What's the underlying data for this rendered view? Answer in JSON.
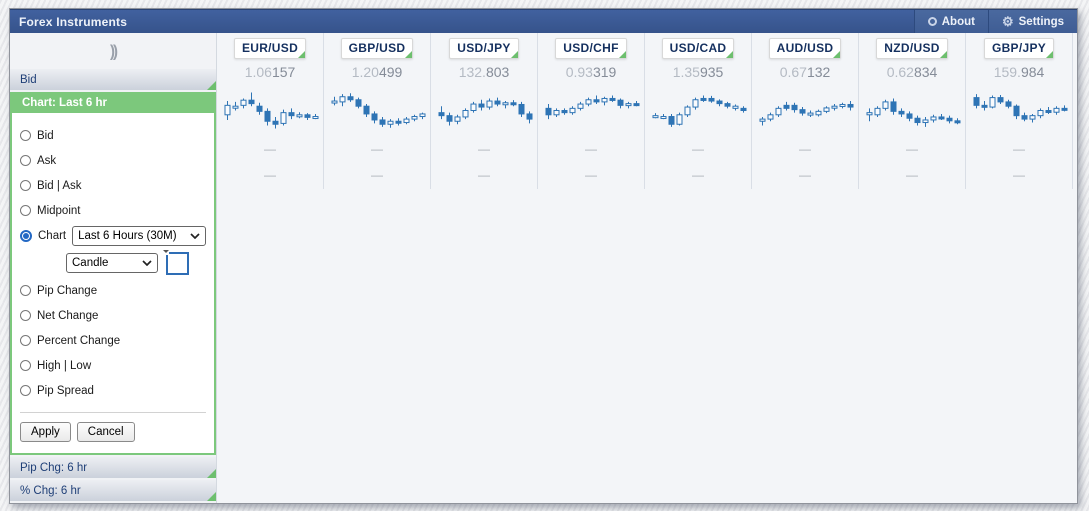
{
  "window": {
    "title": "Forex Instruments",
    "about_label": "About",
    "settings_label": "Settings"
  },
  "sidebar": {
    "collapse_icon": "))",
    "rows": {
      "bid": "Bid",
      "pip_chg": "Pip Chg: 6 hr",
      "pct_chg": "% Chg: 6 hr"
    },
    "chart_panel": {
      "header": "Chart: Last 6 hr",
      "options": [
        {
          "label": "Bid",
          "selected": false
        },
        {
          "label": "Ask",
          "selected": false
        },
        {
          "label": "Bid | Ask",
          "selected": false
        },
        {
          "label": "Midpoint",
          "selected": false
        },
        {
          "label": "Chart",
          "selected": true
        },
        {
          "label": "Pip Change",
          "selected": false
        },
        {
          "label": "Net Change",
          "selected": false
        },
        {
          "label": "Percent Change",
          "selected": false
        },
        {
          "label": "High | Low",
          "selected": false
        },
        {
          "label": "Pip Spread",
          "selected": false
        }
      ],
      "period_select_value": "Last 6 Hours (30M)",
      "style_select_value": "Candle",
      "apply_label": "Apply",
      "cancel_label": "Cancel"
    }
  },
  "main": {
    "empty_cell": "—",
    "pairs": [
      {
        "symbol": "EUR/USD",
        "price": "1.06157",
        "price_big": "1.06",
        "price_pips": "157"
      },
      {
        "symbol": "GBP/USD",
        "price": "1.20499",
        "price_big": "1.20",
        "price_pips": "499"
      },
      {
        "symbol": "USD/JPY",
        "price": "132.803",
        "price_big": "132.",
        "price_pips": "803"
      },
      {
        "symbol": "USD/CHF",
        "price": "0.93319",
        "price_big": "0.93",
        "price_pips": "319"
      },
      {
        "symbol": "USD/CAD",
        "price": "1.35935",
        "price_big": "1.35",
        "price_pips": "935"
      },
      {
        "symbol": "AUD/USD",
        "price": "0.67132",
        "price_big": "0.67",
        "price_pips": "132"
      },
      {
        "symbol": "NZD/USD",
        "price": "0.62834",
        "price_big": "0.62",
        "price_pips": "834"
      },
      {
        "symbol": "GBP/JPY",
        "price": "159.984",
        "price_big": "159.",
        "price_pips": "984"
      }
    ]
  },
  "chart_data": {
    "type": "candlestick",
    "period": "Last 6 Hours (30M)",
    "note": "candles encoded as [open, high, low, close, filled] on relative 0-100 price scale",
    "series": [
      {
        "pair": "EUR/USD",
        "candles": [
          [
            40,
            72,
            28,
            62,
            0
          ],
          [
            58,
            70,
            50,
            60,
            0
          ],
          [
            62,
            78,
            55,
            74,
            0
          ],
          [
            74,
            92,
            60,
            66,
            1
          ],
          [
            60,
            68,
            40,
            48,
            1
          ],
          [
            48,
            55,
            15,
            25,
            1
          ],
          [
            25,
            35,
            8,
            18,
            1
          ],
          [
            20,
            52,
            15,
            45,
            0
          ],
          [
            45,
            55,
            30,
            38,
            1
          ],
          [
            38,
            46,
            32,
            40,
            0
          ],
          [
            40,
            44,
            28,
            34,
            1
          ],
          [
            34,
            42,
            30,
            36,
            0
          ]
        ]
      },
      {
        "pair": "GBP/USD",
        "candles": [
          [
            72,
            82,
            62,
            72,
            0
          ],
          [
            70,
            88,
            60,
            82,
            0
          ],
          [
            82,
            90,
            70,
            75,
            1
          ],
          [
            75,
            80,
            55,
            60,
            1
          ],
          [
            60,
            65,
            35,
            42,
            1
          ],
          [
            42,
            48,
            20,
            28,
            1
          ],
          [
            28,
            35,
            12,
            18,
            1
          ],
          [
            18,
            30,
            10,
            25,
            0
          ],
          [
            25,
            32,
            15,
            22,
            1
          ],
          [
            22,
            35,
            18,
            30,
            0
          ],
          [
            30,
            40,
            25,
            36,
            0
          ],
          [
            36,
            45,
            30,
            42,
            0
          ]
        ]
      },
      {
        "pair": "USD/JPY",
        "candles": [
          [
            45,
            60,
            30,
            38,
            1
          ],
          [
            38,
            45,
            15,
            25,
            1
          ],
          [
            25,
            40,
            18,
            35,
            0
          ],
          [
            35,
            55,
            30,
            50,
            0
          ],
          [
            50,
            70,
            45,
            65,
            0
          ],
          [
            65,
            75,
            50,
            58,
            1
          ],
          [
            58,
            78,
            52,
            72,
            0
          ],
          [
            72,
            80,
            60,
            65,
            1
          ],
          [
            65,
            72,
            55,
            68,
            0
          ],
          [
            68,
            74,
            60,
            64,
            1
          ],
          [
            64,
            70,
            35,
            42,
            1
          ],
          [
            42,
            48,
            20,
            30,
            1
          ]
        ]
      },
      {
        "pair": "USD/CHF",
        "candles": [
          [
            55,
            65,
            30,
            40,
            1
          ],
          [
            40,
            55,
            35,
            50,
            0
          ],
          [
            50,
            55,
            40,
            45,
            1
          ],
          [
            45,
            60,
            40,
            55,
            0
          ],
          [
            55,
            70,
            50,
            65,
            0
          ],
          [
            65,
            80,
            60,
            75,
            0
          ],
          [
            75,
            85,
            65,
            70,
            1
          ],
          [
            70,
            82,
            62,
            78,
            0
          ],
          [
            78,
            85,
            70,
            74,
            1
          ],
          [
            74,
            78,
            55,
            62,
            1
          ],
          [
            62,
            70,
            55,
            66,
            0
          ],
          [
            66,
            72,
            60,
            64,
            1
          ]
        ]
      },
      {
        "pair": "USD/CAD",
        "candles": [
          [
            38,
            44,
            32,
            38,
            0
          ],
          [
            36,
            42,
            30,
            36,
            0
          ],
          [
            36,
            42,
            12,
            18,
            1
          ],
          [
            18,
            45,
            15,
            40,
            0
          ],
          [
            40,
            62,
            35,
            58,
            0
          ],
          [
            58,
            80,
            52,
            75,
            0
          ],
          [
            75,
            85,
            70,
            78,
            1
          ],
          [
            78,
            84,
            68,
            72,
            1
          ],
          [
            72,
            76,
            60,
            66,
            1
          ],
          [
            66,
            70,
            55,
            60,
            1
          ],
          [
            60,
            64,
            50,
            55,
            0
          ],
          [
            55,
            60,
            45,
            50,
            1
          ]
        ]
      },
      {
        "pair": "AUD/USD",
        "candles": [
          [
            25,
            35,
            15,
            30,
            0
          ],
          [
            30,
            45,
            25,
            40,
            0
          ],
          [
            40,
            60,
            35,
            55,
            0
          ],
          [
            55,
            70,
            50,
            62,
            1
          ],
          [
            62,
            68,
            45,
            52,
            1
          ],
          [
            52,
            58,
            38,
            44,
            1
          ],
          [
            44,
            50,
            35,
            40,
            0
          ],
          [
            40,
            52,
            36,
            48,
            0
          ],
          [
            48,
            60,
            44,
            56,
            0
          ],
          [
            56,
            65,
            50,
            60,
            0
          ],
          [
            60,
            68,
            55,
            64,
            0
          ],
          [
            64,
            72,
            50,
            58,
            1
          ]
        ]
      },
      {
        "pair": "NZD/USD",
        "candles": [
          [
            45,
            55,
            25,
            40,
            0
          ],
          [
            40,
            60,
            35,
            55,
            0
          ],
          [
            55,
            75,
            50,
            70,
            0
          ],
          [
            70,
            78,
            40,
            48,
            1
          ],
          [
            48,
            55,
            35,
            42,
            1
          ],
          [
            42,
            48,
            25,
            32,
            1
          ],
          [
            32,
            38,
            15,
            22,
            1
          ],
          [
            22,
            35,
            12,
            28,
            0
          ],
          [
            28,
            40,
            22,
            35,
            0
          ],
          [
            35,
            42,
            28,
            32,
            1
          ],
          [
            32,
            38,
            20,
            26,
            1
          ],
          [
            26,
            32,
            18,
            24,
            1
          ]
        ]
      },
      {
        "pair": "GBP/JPY",
        "candles": [
          [
            80,
            88,
            55,
            62,
            1
          ],
          [
            62,
            72,
            50,
            58,
            1
          ],
          [
            58,
            85,
            55,
            80,
            0
          ],
          [
            80,
            86,
            65,
            70,
            1
          ],
          [
            70,
            75,
            55,
            60,
            1
          ],
          [
            60,
            64,
            30,
            38,
            1
          ],
          [
            38,
            45,
            25,
            30,
            1
          ],
          [
            30,
            42,
            22,
            38,
            0
          ],
          [
            38,
            55,
            32,
            50,
            0
          ],
          [
            50,
            58,
            42,
            46,
            1
          ],
          [
            46,
            60,
            40,
            55,
            0
          ],
          [
            55,
            62,
            48,
            52,
            1
          ]
        ]
      }
    ]
  },
  "colors": {
    "titlebar_blue": "#3b5795",
    "accent_green": "#7cc87c",
    "candle_blue": "#2e74b5",
    "label_blue": "#1f3f77",
    "hollow_fill": "#fafbfd"
  }
}
